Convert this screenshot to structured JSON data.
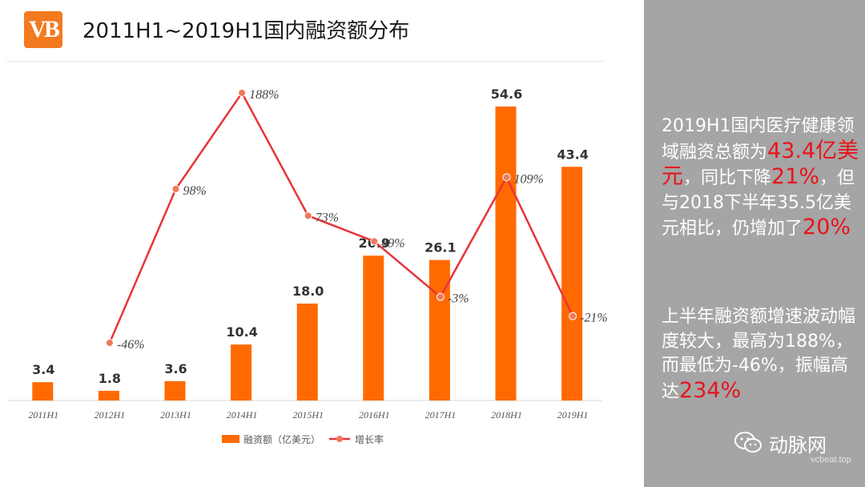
{
  "logo": {
    "text": "VB"
  },
  "title": "2011H1~2019H1国内融资额分布",
  "chart_data": {
    "type": "bar",
    "categories": [
      "2011H1",
      "2012H1",
      "2013H1",
      "2014H1",
      "2015H1",
      "2016H1",
      "2017H1",
      "2018H1",
      "2019H1"
    ],
    "series": [
      {
        "name": "融资额（亿美元）",
        "type": "bar",
        "color": "#ff6a00",
        "values": [
          3.4,
          1.8,
          3.6,
          10.4,
          18.0,
          26.9,
          26.1,
          54.6,
          43.4
        ],
        "labels": [
          "3.4",
          "1.8",
          "3.6",
          "10.4",
          "18.0",
          "26.9",
          "26.1",
          "54.6",
          "43.4"
        ]
      },
      {
        "name": "增长率",
        "type": "line",
        "color": "#e8343a",
        "values": [
          null,
          -46,
          98,
          188,
          73,
          49,
          -3,
          109,
          -21
        ],
        "labels": [
          "",
          "-46%",
          "98%",
          "188%",
          "73%",
          "49%",
          "-3%",
          "109%",
          "-21%"
        ]
      }
    ],
    "bar_axis": {
      "min": 0,
      "max": 58
    },
    "line_axis": {
      "min": -100,
      "max": 200
    },
    "legend": "bottom",
    "grid": false
  },
  "side": {
    "p1": [
      "2019H1国内医疗健康领域融资总额为",
      "43.4亿美元",
      "，同比下降",
      "21%",
      "，但与2018下半年35.5亿美元相比，仍增加了",
      "20%"
    ],
    "p2": [
      "上半年融资额增速波动幅度较大，最高为188%，而最低为-46%，振幅高达",
      "234%"
    ]
  },
  "watermark": {
    "name": "动脉网",
    "sub": "vcbeat.top"
  }
}
